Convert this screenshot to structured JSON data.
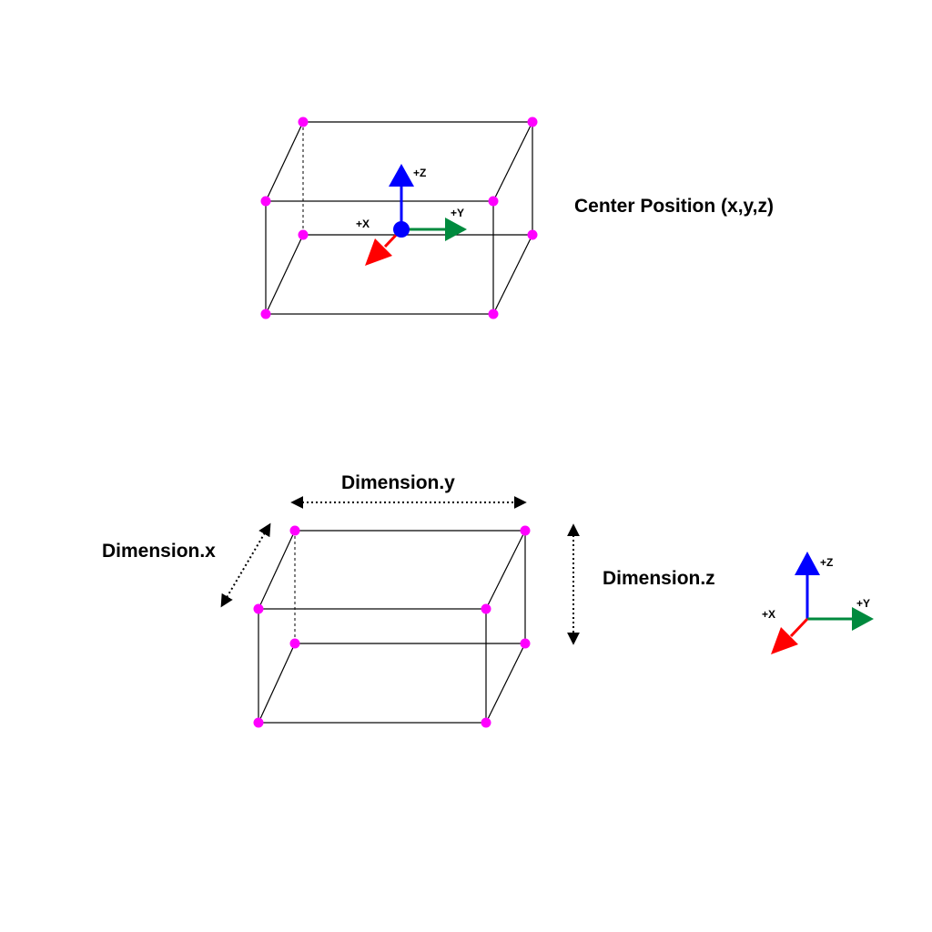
{
  "top_box": {
    "axis_labels": {
      "x": "+X",
      "y": "+Y",
      "z": "+Z"
    },
    "title": "Center Position (x,y,z)"
  },
  "bottom_box": {
    "dim_x": "Dimension.x",
    "dim_y": "Dimension.y",
    "dim_z": "Dimension.z"
  },
  "axes_triad": {
    "axis_labels": {
      "x": "+X",
      "y": "+Y",
      "z": "+Z"
    }
  },
  "colors": {
    "x_axis": "#ff0000",
    "y_axis": "#008a3e",
    "z_axis": "#0000ff",
    "corner": "#ff00ff",
    "center": "#0000ff"
  }
}
